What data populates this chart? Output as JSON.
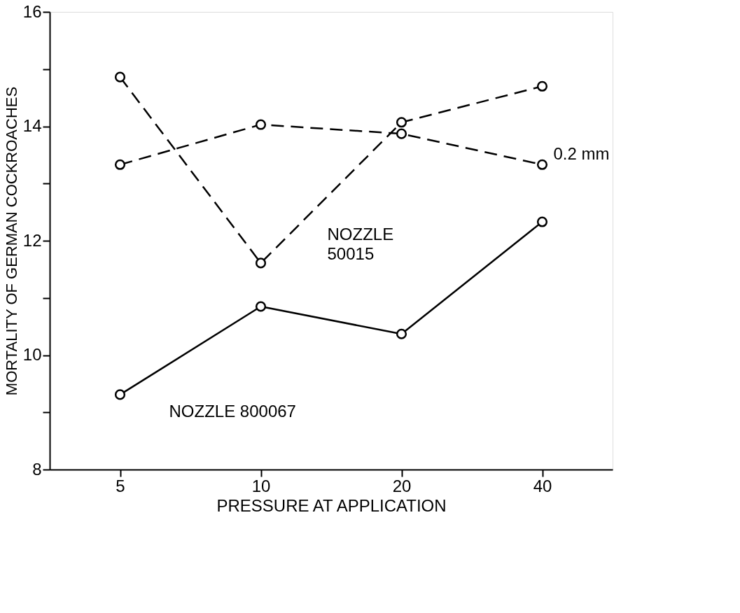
{
  "chart_data": {
    "type": "line",
    "xlabel": "PRESSURE AT APPLICATION",
    "ylabel": "MORTALITY OF GERMAN COCKROACHES",
    "categories": [
      "5",
      "10",
      "20",
      "40"
    ],
    "series": [
      {
        "name": "0.2 mm",
        "color": "#000000",
        "line_style": "dashed",
        "values": [
          13.33,
          14.03,
          13.87,
          13.33
        ]
      },
      {
        "name": "NOZZLE 50015",
        "color": "#000000",
        "line_style": "dashed",
        "values": [
          14.86,
          11.61,
          14.07,
          14.7
        ]
      },
      {
        "name": "NOZZLE 800067",
        "color": "#000000",
        "line_style": "solid",
        "values": [
          9.31,
          10.85,
          10.37,
          12.33
        ]
      }
    ],
    "ylim": [
      8,
      16
    ],
    "yticks": [
      8,
      {
        "value": 9,
        "label": null
      },
      10,
      {
        "value": 11,
        "label": null
      },
      12,
      {
        "value": 13,
        "label": null
      },
      14,
      {
        "value": 15,
        "label": null
      },
      16
    ],
    "marker": "circle",
    "grid": false
  }
}
